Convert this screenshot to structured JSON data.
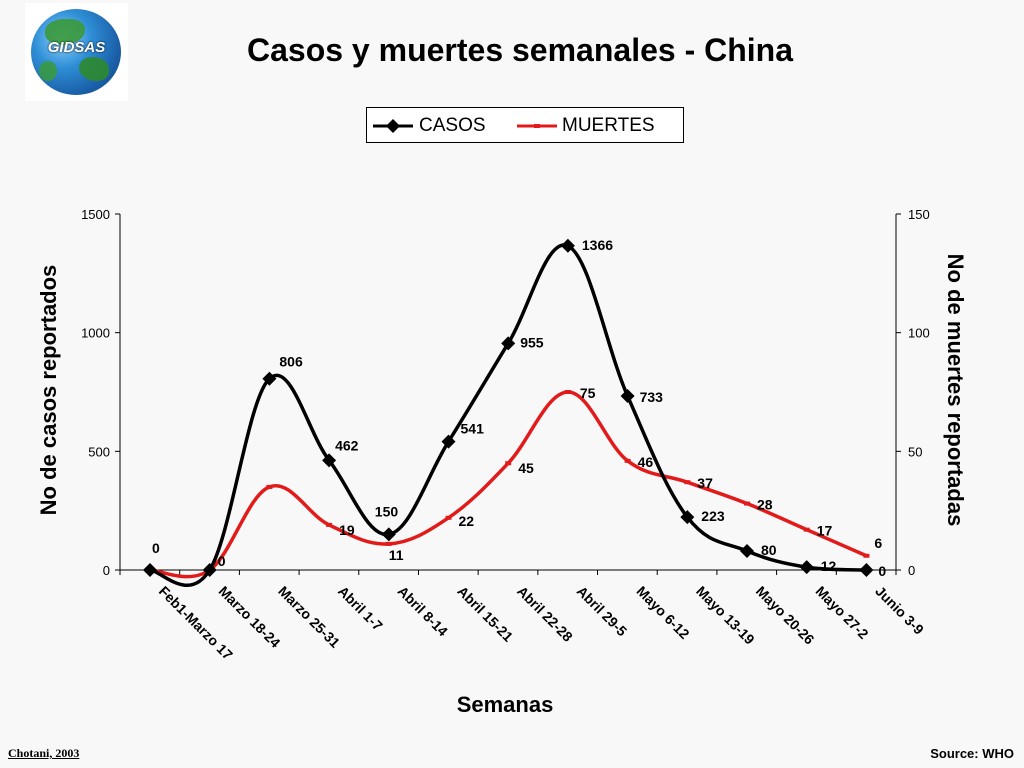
{
  "logo": {
    "text": "GIDSAS"
  },
  "title": "Casos y muertes semanales - China",
  "credit": "Chotani, 2003",
  "source": "Source: WHO",
  "chart_data": {
    "type": "line",
    "title": "Casos y muertes semanales - China",
    "xlabel": "Semanas",
    "ylabel_left": "No de casos reportados",
    "ylabel_right": "No de muertes reportadas",
    "categories": [
      "Feb1-Marzo 17",
      "Marzo 18-24",
      "Marzo 25-31",
      "Abril 1-7",
      "Abril 8-14",
      "Abril 15-21",
      "Abril 22-28",
      "Abril 29-5",
      "Mayo 6-12",
      "Mayo 13-19",
      "Mayo 20-26",
      "Mayo 27-2",
      "Junio 3-9"
    ],
    "ylim_left": [
      0,
      1500
    ],
    "ylim_right": [
      0,
      150
    ],
    "yticks_left": [
      "0",
      "500",
      "1000",
      "1500"
    ],
    "yticks_right": [
      "0",
      "50",
      "100",
      "150"
    ],
    "legend_position": "top",
    "grid": false,
    "series": [
      {
        "name": "CASOS",
        "axis": "left",
        "color": "#000000",
        "marker": "diamond",
        "values": [
          0,
          0,
          806,
          462,
          150,
          541,
          955,
          1366,
          733,
          223,
          80,
          12,
          0
        ],
        "labels": [
          "0",
          "0",
          "806",
          "462",
          "150",
          "541",
          "955",
          "1366",
          "733",
          "223",
          "80",
          "12",
          "0"
        ]
      },
      {
        "name": "MUERTES",
        "axis": "right",
        "color": "#e31a1a",
        "marker": "dash",
        "values": [
          0,
          0,
          35,
          19,
          11,
          22,
          45,
          75,
          46,
          37,
          28,
          17,
          6
        ],
        "labels": [
          "",
          "",
          "",
          "19",
          "11",
          "22",
          "45",
          "75",
          "46",
          "37",
          "28",
          "17",
          "6"
        ]
      }
    ]
  }
}
